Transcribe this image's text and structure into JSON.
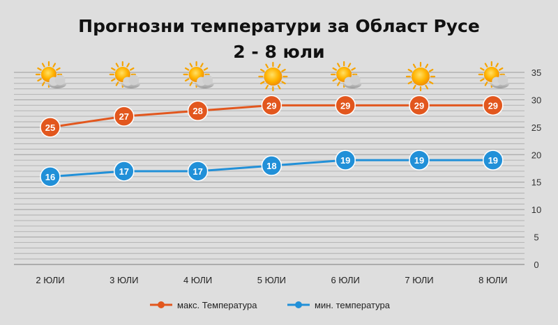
{
  "chart_data": {
    "type": "line",
    "title": "Прогнозни температури за Област Русе",
    "subtitle": "2 - 8 юли",
    "categories": [
      "2 ЮЛИ",
      "3 ЮЛИ",
      "4 ЮЛИ",
      "5 ЮЛИ",
      "6 ЮЛИ",
      "7 ЮЛИ",
      "8 ЮЛИ"
    ],
    "series": [
      {
        "name": "макс. Температура",
        "values": [
          25,
          27,
          28,
          29,
          29,
          29,
          29
        ],
        "color": "#e2571e"
      },
      {
        "name": "мин. температура",
        "values": [
          16,
          17,
          17,
          18,
          19,
          19,
          19
        ],
        "color": "#2190d8"
      }
    ],
    "ylim": [
      0,
      35
    ],
    "yticks": [
      0,
      5,
      10,
      15,
      20,
      25,
      30,
      35
    ],
    "grid": true,
    "axis_side": "right",
    "legend_position": "bottom",
    "weather_icons": [
      "sun-cloud-icon",
      "sun-cloud-icon",
      "sun-cloud-icon",
      "sun-icon",
      "sun-cloud-icon",
      "sun-icon",
      "sun-cloud-icon"
    ]
  }
}
